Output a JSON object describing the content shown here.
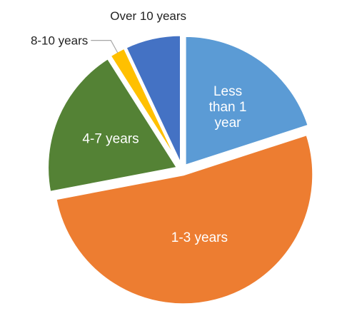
{
  "chart_data": {
    "type": "pie",
    "title": "",
    "exploded": true,
    "labels": [
      "Less than 1 year",
      "1-3 years",
      "4-7 years",
      "8-10 years",
      "Over 10 years"
    ],
    "label_lines": [
      [
        "Less",
        "than 1",
        "year"
      ],
      [
        "1-3 years"
      ],
      [
        "4-7 years"
      ],
      [
        "8-10 years"
      ],
      [
        "Over 10 years"
      ]
    ],
    "values": [
      20,
      52,
      19,
      2,
      7
    ],
    "colors": [
      "#5B9BD5",
      "#ED7D31",
      "#548235",
      "#FFC000",
      "#4472C4"
    ],
    "label_position": [
      "inside",
      "inside",
      "inside",
      "outside-leader",
      "outside"
    ]
  }
}
